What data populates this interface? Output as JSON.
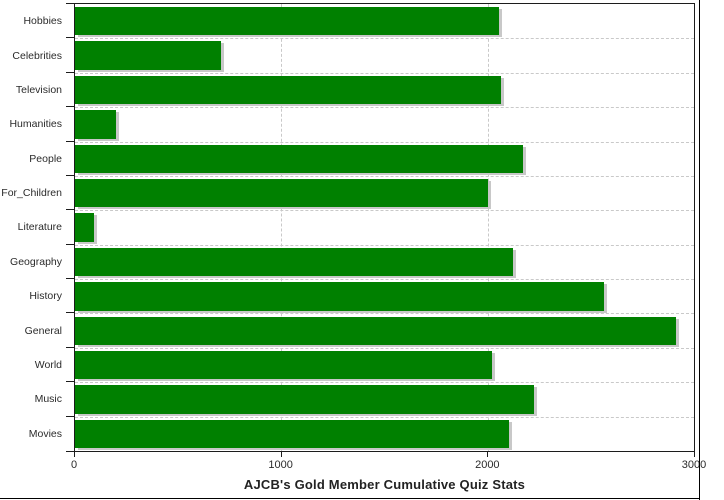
{
  "title": "AJCB's Gold Member Cumulative Quiz Stats",
  "chart_data": {
    "type": "bar",
    "orientation": "horizontal",
    "title": "AJCB's Gold Member Cumulative Quiz Stats",
    "xlabel": "",
    "ylabel": "",
    "xlim": [
      0,
      3000
    ],
    "x_ticks": [
      0,
      1000,
      2000,
      3000
    ],
    "x_tick_labels": [
      "0",
      "1000",
      "2000",
      "3000"
    ],
    "grid": "dashed",
    "legend": "none",
    "bar_color": "#008000",
    "shadow_color": "#c8c8c8",
    "categories": [
      "Hobbies",
      "Celebrities",
      "Television",
      "Humanities",
      "People",
      "For_Children",
      "Literature",
      "Geography",
      "History",
      "General",
      "World",
      "Music",
      "Movies"
    ],
    "values": [
      2055,
      710,
      2065,
      200,
      2170,
      2000,
      90,
      2125,
      2565,
      2915,
      2020,
      2225,
      2105
    ]
  }
}
